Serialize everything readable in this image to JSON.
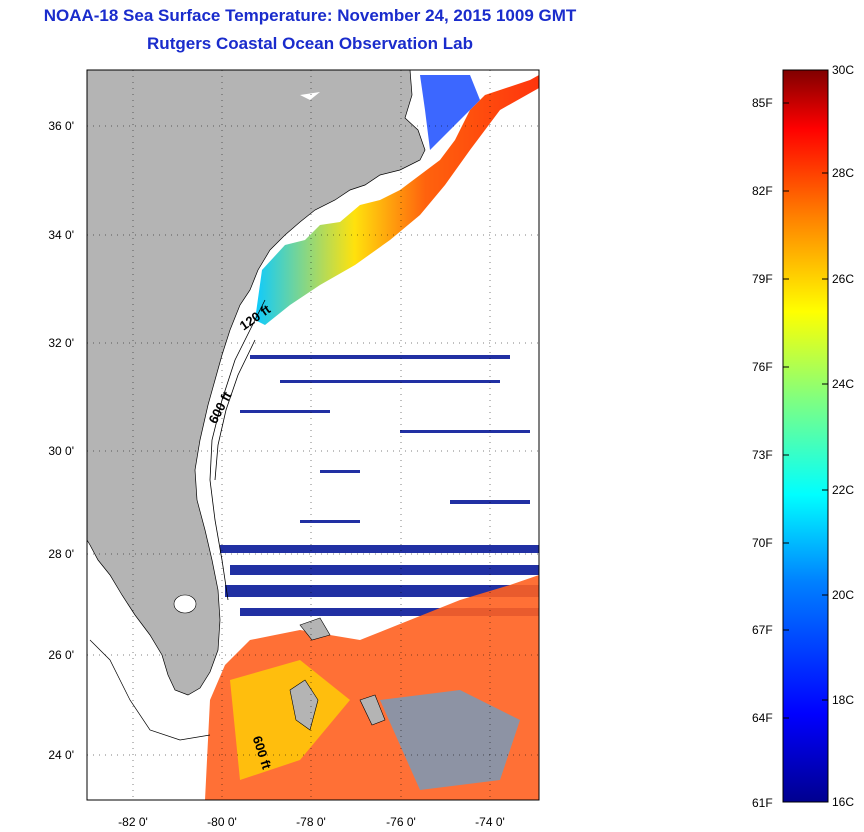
{
  "title": "NOAA-18 Sea Surface Temperature:  November 24, 2015 1009 GMT",
  "subtitle": "Rutgers Coastal Ocean Observation Lab",
  "lat_labels": [
    "36 0'",
    "34 0'",
    "32 0'",
    "30 0'",
    "28 0'",
    "26 0'",
    "24 0'"
  ],
  "lon_labels": [
    "-82 0'",
    "-80 0'",
    "-78 0'",
    "-76 0'",
    "-74 0'"
  ],
  "contour_labels": [
    "120 ft",
    "600 ft",
    "600 ft"
  ],
  "colorbar": {
    "celsius": [
      "30C",
      "28C",
      "26C",
      "24C",
      "22C",
      "20C",
      "18C",
      "16C"
    ],
    "fahrenheit": [
      "85F",
      "82F",
      "79F",
      "76F",
      "73F",
      "70F",
      "67F",
      "64F",
      "61F"
    ],
    "colors": [
      "#00008f",
      "#0000ff",
      "#0080ff",
      "#00ffff",
      "#80ff80",
      "#ffff00",
      "#ff8000",
      "#ff0000",
      "#800000"
    ]
  },
  "land_color": "#b4b4b4"
}
